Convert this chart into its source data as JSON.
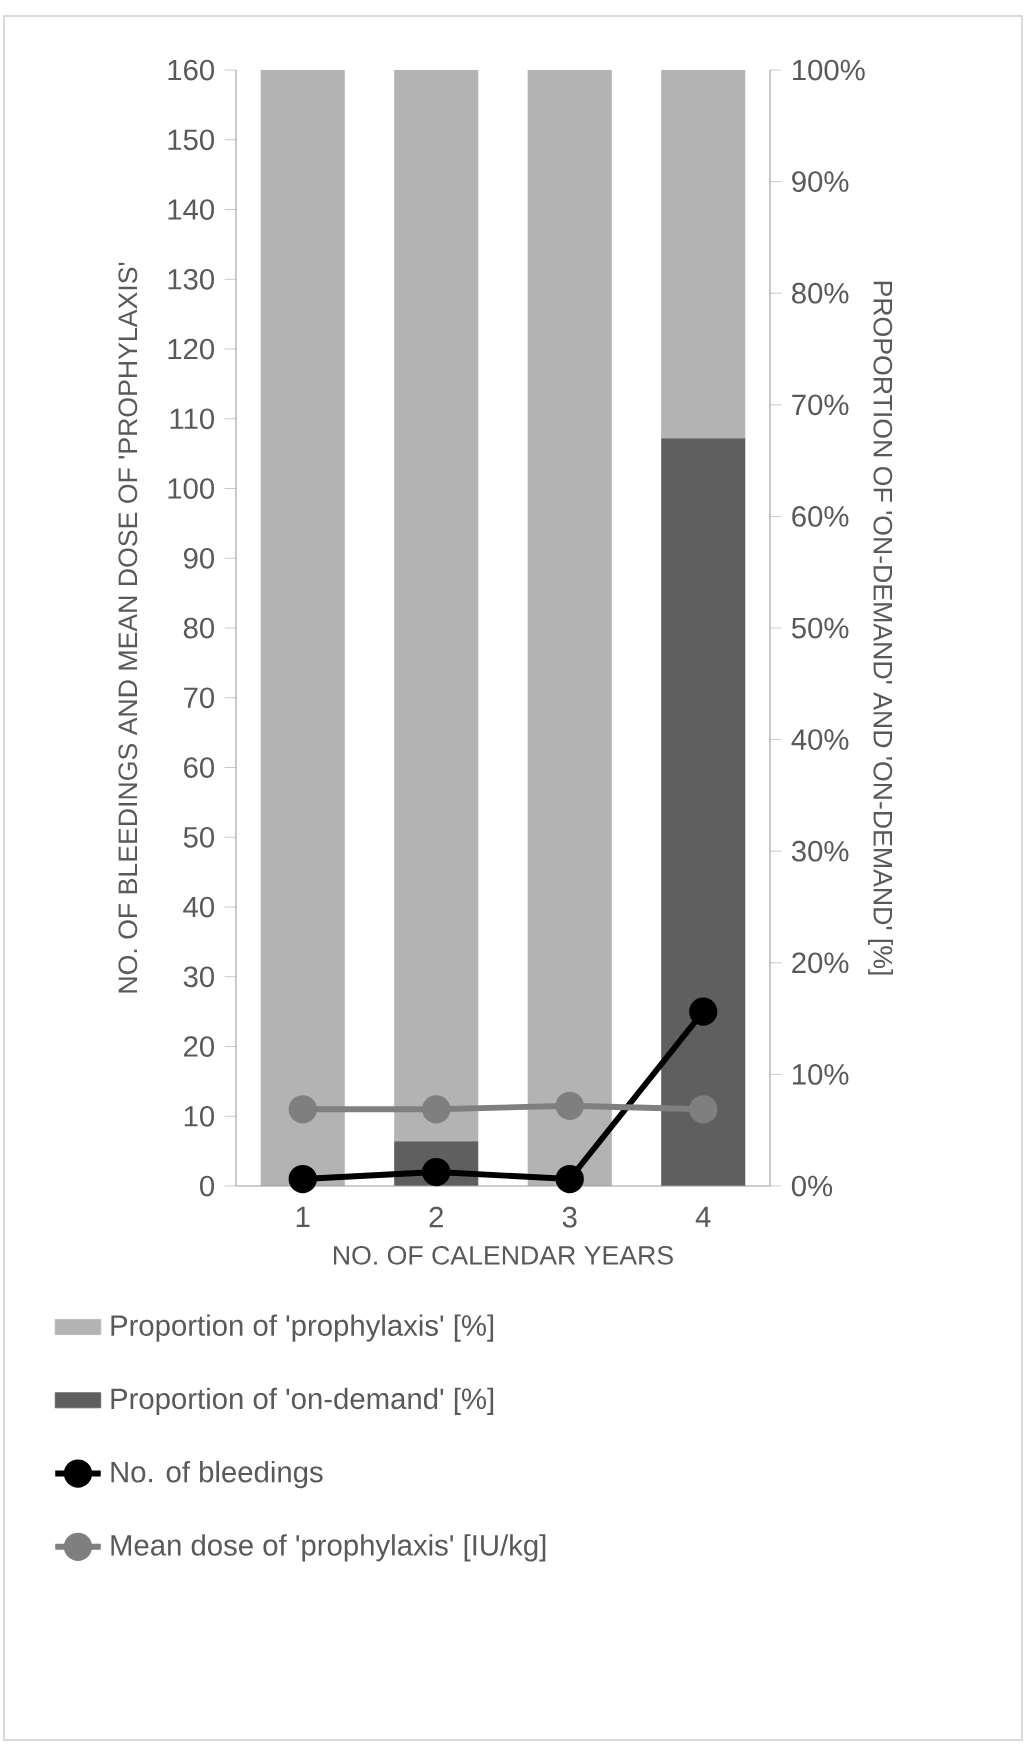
{
  "chart_data": {
    "type": "bar",
    "stacked": true,
    "xlabel": "NO. OF CALENDAR YEARS",
    "ylabel": "NO. OF BLEEDINGS AND MEAN DOSE OF 'PROPHYLAXIS'",
    "y2label": "PROPORTION OF 'ON-DEMAND' AND 'ON-DEMAND' [%]",
    "categories": [
      "1",
      "2",
      "3",
      "4"
    ],
    "series": [
      {
        "name": "Proportion of 'on-demand' [%]",
        "axis": "y2",
        "color": "#5f5f5f",
        "values": [
          0,
          4,
          0,
          67
        ]
      },
      {
        "name": "Proportion of 'prophylaxis' [%]",
        "axis": "y2",
        "color": "#b3b3b3",
        "values": [
          100,
          96,
          100,
          33
        ]
      },
      {
        "name": "No. of bleedings",
        "type": "line",
        "color": "#000000",
        "values": [
          1,
          2,
          1,
          25
        ]
      },
      {
        "name": "Mean dose of 'prophylaxis' [IU/kg]",
        "type": "line",
        "color": "#7f7f7f",
        "values": [
          11,
          11,
          11.5,
          11
        ]
      }
    ],
    "ylim": [
      0,
      160
    ],
    "yticks": [
      0,
      10,
      20,
      30,
      40,
      50,
      60,
      70,
      80,
      90,
      100,
      110,
      120,
      130,
      140,
      150,
      160
    ],
    "y2lim": [
      0,
      100
    ],
    "y2ticks": [
      {
        "value": 0,
        "label": "0%"
      },
      {
        "value": 10,
        "label": "10%"
      },
      {
        "value": 20,
        "label": "20%"
      },
      {
        "value": 30,
        "label": "30%"
      },
      {
        "value": 40,
        "label": "40%"
      },
      {
        "value": 50,
        "label": "50%"
      },
      {
        "value": 60,
        "label": "60%"
      },
      {
        "value": 70,
        "label": "70%"
      },
      {
        "value": 80,
        "label": "80%"
      },
      {
        "value": 90,
        "label": "90%"
      },
      {
        "value": 100,
        "label": "100%"
      }
    ],
    "marker": "circle",
    "legend": "bottom"
  }
}
